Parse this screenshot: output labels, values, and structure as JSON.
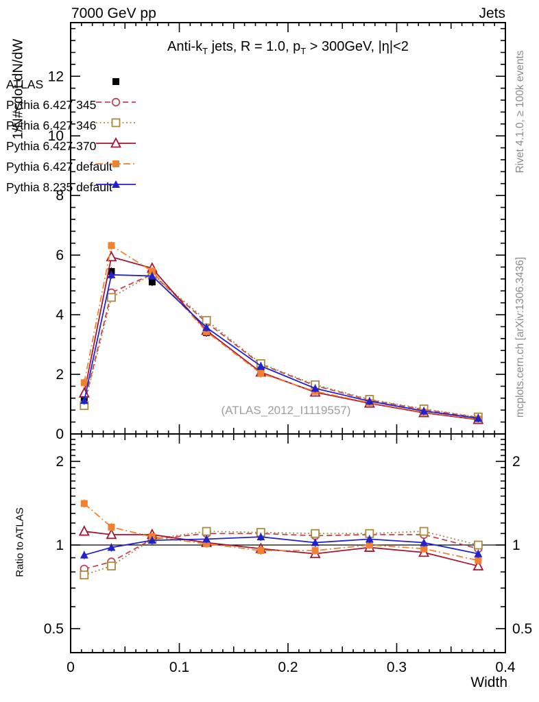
{
  "header": {
    "left": "7000 GeV pp",
    "right": "Jets"
  },
  "title_parts": [
    {
      "text": "Anti-k"
    },
    {
      "sub": "T"
    },
    {
      "text": " jets, R = 1.0, p"
    },
    {
      "sub": "T"
    },
    {
      "text": " > 300GeV, |η|<2"
    }
  ],
  "watermark": "(ATLAS_2012_I1119557)",
  "side_notes": {
    "top": "Rivet 4.1.0, ≥ 100k events",
    "bottom": "mcplots.cern.ch [arXiv:1306.3436]"
  },
  "axes": {
    "main_ylabel": "1/N#cdot dN/dW",
    "ratio_ylabel": "Ratio to ATLAS",
    "xlabel": "Width"
  },
  "chart_data": {
    "type": "line",
    "title": "Anti-kT jets, R = 1.0, pT > 300GeV, |eta|<2",
    "xlabel": "Width",
    "ylabel": "1/N#cdot dN/dW",
    "ratio_ylabel": "Ratio to ATLAS",
    "xlim": [
      0,
      0.4
    ],
    "xticks": [
      0,
      0.1,
      0.2,
      0.3,
      0.4
    ],
    "main_ylim": [
      0,
      13.8
    ],
    "main_yticks": [
      0,
      2,
      4,
      6,
      8,
      10,
      12
    ],
    "ratio_ylim": [
      0.41,
      2.51
    ],
    "ratio_yscale": "log",
    "ratio_yticks": [
      0.5,
      1,
      2
    ],
    "ratio_reference": 1,
    "grid": false,
    "legend_position": "top-left",
    "x": [
      0.0125,
      0.0375,
      0.075,
      0.125,
      0.175,
      0.225,
      0.275,
      0.325,
      0.375
    ],
    "series": [
      {
        "id": "atlas",
        "label": "ATLAS",
        "color": "#000000",
        "marker": "square-filled",
        "line": "none",
        "role": "reference",
        "values": [
          1.22,
          5.45,
          5.1,
          3.4,
          2.13,
          1.5,
          1.05,
          0.75,
          0.57
        ]
      },
      {
        "id": "py6-345",
        "label": "Pythia 6.427 345",
        "color": "#c04455",
        "marker": "circle-open",
        "line": "dash",
        "values": [
          1.0,
          4.74,
          5.36,
          3.74,
          2.34,
          1.62,
          1.14,
          0.82,
          0.55
        ],
        "ratio": [
          0.82,
          0.87,
          1.05,
          1.1,
          1.1,
          1.08,
          1.09,
          1.09,
          0.97
        ]
      },
      {
        "id": "py6-346",
        "label": "Pythia 6.427 346",
        "color": "#a98a3c",
        "marker": "square-open",
        "line": "dot",
        "values": [
          0.95,
          4.58,
          5.36,
          3.81,
          2.36,
          1.65,
          1.16,
          0.84,
          0.57
        ],
        "ratio": [
          0.78,
          0.84,
          1.05,
          1.12,
          1.11,
          1.1,
          1.1,
          1.12,
          1.0
        ]
      },
      {
        "id": "py6-370",
        "label": "Pythia 6.427 370",
        "color": "#a31532",
        "marker": "triangle-open",
        "line": "solid",
        "values": [
          1.37,
          5.94,
          5.56,
          3.47,
          2.07,
          1.4,
          1.03,
          0.71,
          0.48
        ],
        "ratio": [
          1.12,
          1.09,
          1.09,
          1.02,
          0.97,
          0.93,
          0.98,
          0.94,
          0.84
        ]
      },
      {
        "id": "py6-default",
        "label": "Pythia 6.427 default",
        "color": "#f08130",
        "marker": "square-filled",
        "line": "dashdot",
        "values": [
          1.72,
          6.32,
          5.46,
          3.43,
          2.03,
          1.43,
          1.05,
          0.73,
          0.5
        ],
        "ratio": [
          1.41,
          1.16,
          1.07,
          1.01,
          0.955,
          0.955,
          1.0,
          0.97,
          0.88
        ]
      },
      {
        "id": "py8-default",
        "label": "Pythia 8.235 default",
        "color": "#2222cc",
        "marker": "triangle-filled",
        "line": "solid",
        "values": [
          1.12,
          5.34,
          5.3,
          3.57,
          2.28,
          1.53,
          1.1,
          0.77,
          0.53
        ],
        "ratio": [
          0.92,
          0.98,
          1.04,
          1.05,
          1.07,
          1.02,
          1.05,
          1.02,
          0.93
        ]
      }
    ]
  }
}
